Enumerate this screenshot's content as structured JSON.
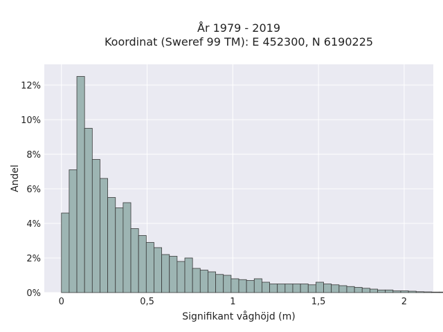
{
  "chart_data": {
    "type": "bar",
    "title": "År 1979 - 2019",
    "subtitle": "Koordinat (Sweref 99 TM): E 452300, N 6190225",
    "xlabel": "Signifikant våghöjd (m)",
    "ylabel": "Andel",
    "xlim": [
      -0.1,
      2.17
    ],
    "ylim": [
      0,
      13.2
    ],
    "x_ticks": [
      0,
      0.5,
      1,
      1.5,
      2
    ],
    "x_tick_labels": [
      "0",
      "0,5",
      "1",
      "1,5",
      "2"
    ],
    "y_ticks": [
      0,
      2,
      4,
      6,
      8,
      10,
      12
    ],
    "y_tick_labels": [
      "0%",
      "2%",
      "4%",
      "6%",
      "8%",
      "10%",
      "12%"
    ],
    "grid": true,
    "legend": "none",
    "bin_start": 0,
    "bin_width": 0.045,
    "values": [
      4.6,
      7.1,
      12.5,
      9.5,
      7.7,
      6.6,
      5.5,
      4.9,
      5.2,
      3.7,
      3.3,
      2.9,
      2.6,
      2.2,
      2.1,
      1.8,
      2.0,
      1.4,
      1.3,
      1.2,
      1.05,
      1.0,
      0.8,
      0.75,
      0.7,
      0.8,
      0.6,
      0.5,
      0.5,
      0.5,
      0.5,
      0.5,
      0.45,
      0.6,
      0.5,
      0.45,
      0.4,
      0.35,
      0.3,
      0.25,
      0.2,
      0.15,
      0.15,
      0.1,
      0.1,
      0.08,
      0.05,
      0.04,
      0.03,
      0.03,
      0.02,
      0.02
    ],
    "colors": {
      "bar_fill": "#9db5b3",
      "bar_stroke": "#3a3a3a",
      "plot_background": "#eaeaf2",
      "grid": "#ffffff"
    }
  }
}
